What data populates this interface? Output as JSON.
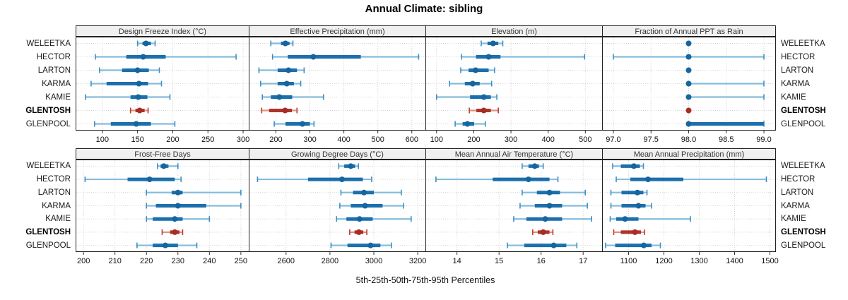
{
  "title": "Annual Climate: sibling",
  "xlabel": "5th-25th-50th-75th-95th Percentiles",
  "stations": [
    "WELEETKA",
    "HECTOR",
    "LARTON",
    "KARMA",
    "KAMIE",
    "GLENTOSH",
    "GLENPOOL"
  ],
  "highlight_station": "GLENTOSH",
  "percentile_labels": [
    "5th",
    "25th",
    "50th",
    "75th",
    "95th"
  ],
  "style": {
    "blue": {
      "whisker": "#85bcdc",
      "cap": "#3d8ec4",
      "box": "#1b6fad",
      "dot": "#15659f"
    },
    "red": {
      "whisker": "#dc9185",
      "cap": "#c0392b",
      "box": "#b03229",
      "dot": "#a62d24"
    },
    "grid": "#d6d6d6",
    "panel_border": "#222222",
    "header_bg": "#f0f0f0",
    "text": "#1a1a1a"
  },
  "chart_data": [
    {
      "type": "dotplot-interval",
      "title": "Design Freeze Index (°C)",
      "xlim": [
        62,
        308
      ],
      "tick_values": [
        100,
        150,
        200,
        250,
        300
      ],
      "tick_labels": [
        "100",
        "150",
        "200",
        "250",
        "300"
      ],
      "rows": [
        {
          "station": "WELEETKA",
          "p": [
            150,
            157,
            162,
            169,
            175
          ]
        },
        {
          "station": "HECTOR",
          "p": [
            90,
            134,
            158,
            190,
            290
          ]
        },
        {
          "station": "LARTON",
          "p": [
            96,
            128,
            150,
            166,
            181
          ]
        },
        {
          "station": "KARMA",
          "p": [
            84,
            106,
            152,
            165,
            184
          ]
        },
        {
          "station": "KAMIE",
          "p": [
            76,
            140,
            151,
            164,
            196
          ]
        },
        {
          "station": "GLENTOSH",
          "p": [
            140,
            147,
            153,
            160,
            165
          ]
        },
        {
          "station": "GLENPOOL",
          "p": [
            89,
            112,
            148,
            169,
            203
          ]
        }
      ]
    },
    {
      "type": "dotplot-interval",
      "title": "Effective Precipitation (mm)",
      "xlim": [
        120,
        640
      ],
      "tick_values": [
        200,
        300,
        400,
        500,
        600
      ],
      "tick_labels": [
        "200",
        "300",
        "400",
        "500",
        "600"
      ],
      "rows": [
        {
          "station": "WELEETKA",
          "p": [
            185,
            215,
            228,
            240,
            250
          ]
        },
        {
          "station": "HECTOR",
          "p": [
            190,
            235,
            310,
            450,
            620
          ]
        },
        {
          "station": "LARTON",
          "p": [
            150,
            205,
            237,
            262,
            283
          ]
        },
        {
          "station": "KARMA",
          "p": [
            155,
            205,
            232,
            253,
            273
          ]
        },
        {
          "station": "KAMIE",
          "p": [
            160,
            185,
            210,
            248,
            340
          ]
        },
        {
          "station": "GLENTOSH",
          "p": [
            158,
            180,
            227,
            247,
            262
          ]
        },
        {
          "station": "GLENPOOL",
          "p": [
            195,
            228,
            278,
            300,
            312
          ]
        }
      ]
    },
    {
      "type": "dotplot-interval",
      "title": "Elevation (m)",
      "xlim": [
        70,
        545
      ],
      "tick_values": [
        100,
        200,
        300,
        400,
        500
      ],
      "tick_labels": [
        "100",
        "200",
        "300",
        "400",
        "500"
      ],
      "rows": [
        {
          "station": "WELEETKA",
          "p": [
            220,
            237,
            252,
            266,
            278
          ]
        },
        {
          "station": "HECTOR",
          "p": [
            167,
            206,
            240,
            272,
            498
          ]
        },
        {
          "station": "LARTON",
          "p": [
            165,
            186,
            205,
            240,
            256
          ]
        },
        {
          "station": "KARMA",
          "p": [
            135,
            176,
            197,
            216,
            248
          ]
        },
        {
          "station": "KAMIE",
          "p": [
            100,
            190,
            227,
            246,
            262
          ]
        },
        {
          "station": "GLENTOSH",
          "p": [
            188,
            207,
            227,
            246,
            266
          ]
        },
        {
          "station": "GLENPOOL",
          "p": [
            150,
            170,
            183,
            201,
            231
          ]
        }
      ]
    },
    {
      "type": "dotplot-interval",
      "title": "Fraction of Annual PPT as Rain",
      "xlim": [
        96.85,
        99.15
      ],
      "tick_values": [
        97.0,
        97.5,
        98.0,
        98.5,
        99.0
      ],
      "tick_labels": [
        "97.0",
        "97.5",
        "98.0",
        "98.5",
        "99.0"
      ],
      "rows": [
        {
          "station": "WELEETKA",
          "p": [
            98,
            98,
            98,
            98,
            98
          ]
        },
        {
          "station": "HECTOR",
          "p": [
            97,
            98,
            98,
            98,
            99
          ]
        },
        {
          "station": "LARTON",
          "p": [
            98,
            98,
            98,
            98,
            98
          ]
        },
        {
          "station": "KARMA",
          "p": [
            98,
            98,
            98,
            98,
            99
          ]
        },
        {
          "station": "KAMIE",
          "p": [
            98,
            98,
            98,
            98,
            99
          ]
        },
        {
          "station": "GLENTOSH",
          "p": [
            98,
            98,
            98,
            98,
            98
          ]
        },
        {
          "station": "GLENPOOL",
          "p": [
            98,
            98,
            98,
            99,
            99
          ]
        }
      ]
    },
    {
      "type": "dotplot-interval",
      "title": "Frost-Free Days",
      "xlim": [
        197.5,
        252.5
      ],
      "tick_values": [
        200,
        210,
        220,
        230,
        240,
        250
      ],
      "tick_labels": [
        "200",
        "210",
        "220",
        "230",
        "240",
        "250"
      ],
      "rows": [
        {
          "station": "WELEETKA",
          "p": [
            223.5,
            224.5,
            225.5,
            227,
            230
          ]
        },
        {
          "station": "HECTOR",
          "p": [
            200.5,
            214,
            221,
            229,
            231
          ]
        },
        {
          "station": "LARTON",
          "p": [
            220,
            228,
            230,
            231.5,
            250
          ]
        },
        {
          "station": "KARMA",
          "p": [
            220,
            223,
            230,
            239,
            250
          ]
        },
        {
          "station": "KAMIE",
          "p": [
            220,
            222,
            229,
            231.5,
            240
          ]
        },
        {
          "station": "GLENTOSH",
          "p": [
            225,
            227.5,
            229,
            230.5,
            231.5
          ]
        },
        {
          "station": "GLENPOOL",
          "p": [
            217,
            222,
            226,
            230,
            236
          ]
        }
      ]
    },
    {
      "type": "dotplot-interval",
      "title": "Growing Degree Days (°C)",
      "xlim": [
        2430,
        3235
      ],
      "tick_values": [
        2600,
        2800,
        3000,
        3200
      ],
      "tick_labels": [
        "2600",
        "2800",
        "3000",
        "3200"
      ],
      "rows": [
        {
          "station": "WELEETKA",
          "p": [
            2840,
            2865,
            2895,
            2915,
            2930
          ]
        },
        {
          "station": "HECTOR",
          "p": [
            2470,
            2700,
            2855,
            2950,
            2990
          ]
        },
        {
          "station": "LARTON",
          "p": [
            2850,
            2905,
            2955,
            3000,
            3125
          ]
        },
        {
          "station": "KARMA",
          "p": [
            2845,
            2895,
            2960,
            3040,
            3135
          ]
        },
        {
          "station": "KAMIE",
          "p": [
            2830,
            2875,
            2935,
            2995,
            3170
          ]
        },
        {
          "station": "GLENTOSH",
          "p": [
            2890,
            2912,
            2932,
            2952,
            2968
          ]
        },
        {
          "station": "GLENPOOL",
          "p": [
            2805,
            2880,
            2985,
            3030,
            3080
          ]
        }
      ]
    },
    {
      "type": "dotplot-interval",
      "title": "Mean Annual Air Temperature (°C)",
      "xlim": [
        13.25,
        17.45
      ],
      "tick_values": [
        14,
        15,
        16,
        17
      ],
      "tick_labels": [
        "14",
        "15",
        "16",
        "17"
      ],
      "rows": [
        {
          "station": "WELEETKA",
          "p": [
            15.55,
            15.7,
            15.85,
            15.95,
            16.05
          ]
        },
        {
          "station": "HECTOR",
          "p": [
            13.5,
            14.85,
            15.7,
            16.2,
            16.4
          ]
        },
        {
          "station": "LARTON",
          "p": [
            15.55,
            15.9,
            16.2,
            16.45,
            17.05
          ]
        },
        {
          "station": "KARMA",
          "p": [
            15.5,
            15.85,
            16.2,
            16.5,
            17.1
          ]
        },
        {
          "station": "KAMIE",
          "p": [
            15.35,
            15.65,
            16.1,
            16.5,
            17.2
          ]
        },
        {
          "station": "GLENTOSH",
          "p": [
            15.8,
            15.92,
            16.05,
            16.2,
            16.28
          ]
        },
        {
          "station": "GLENPOOL",
          "p": [
            15.2,
            15.6,
            16.3,
            16.6,
            16.85
          ]
        }
      ]
    },
    {
      "type": "dotplot-interval",
      "title": "Mean Annual Precipitation (mm)",
      "xlim": [
        1025,
        1515
      ],
      "tick_values": [
        1100,
        1200,
        1300,
        1400,
        1500
      ],
      "tick_labels": [
        "1100",
        "1200",
        "1300",
        "1400",
        "1500"
      ],
      "rows": [
        {
          "station": "WELEETKA",
          "p": [
            1055,
            1078,
            1115,
            1132,
            1142
          ]
        },
        {
          "station": "HECTOR",
          "p": [
            1065,
            1105,
            1155,
            1255,
            1490
          ]
        },
        {
          "station": "LARTON",
          "p": [
            1050,
            1080,
            1125,
            1142,
            1152
          ]
        },
        {
          "station": "KARMA",
          "p": [
            1050,
            1080,
            1128,
            1148,
            1165
          ]
        },
        {
          "station": "KAMIE",
          "p": [
            1048,
            1065,
            1090,
            1128,
            1275
          ]
        },
        {
          "station": "GLENTOSH",
          "p": [
            1058,
            1078,
            1118,
            1135,
            1145
          ]
        },
        {
          "station": "GLENPOOL",
          "p": [
            1035,
            1062,
            1143,
            1165,
            1190
          ]
        }
      ]
    }
  ]
}
